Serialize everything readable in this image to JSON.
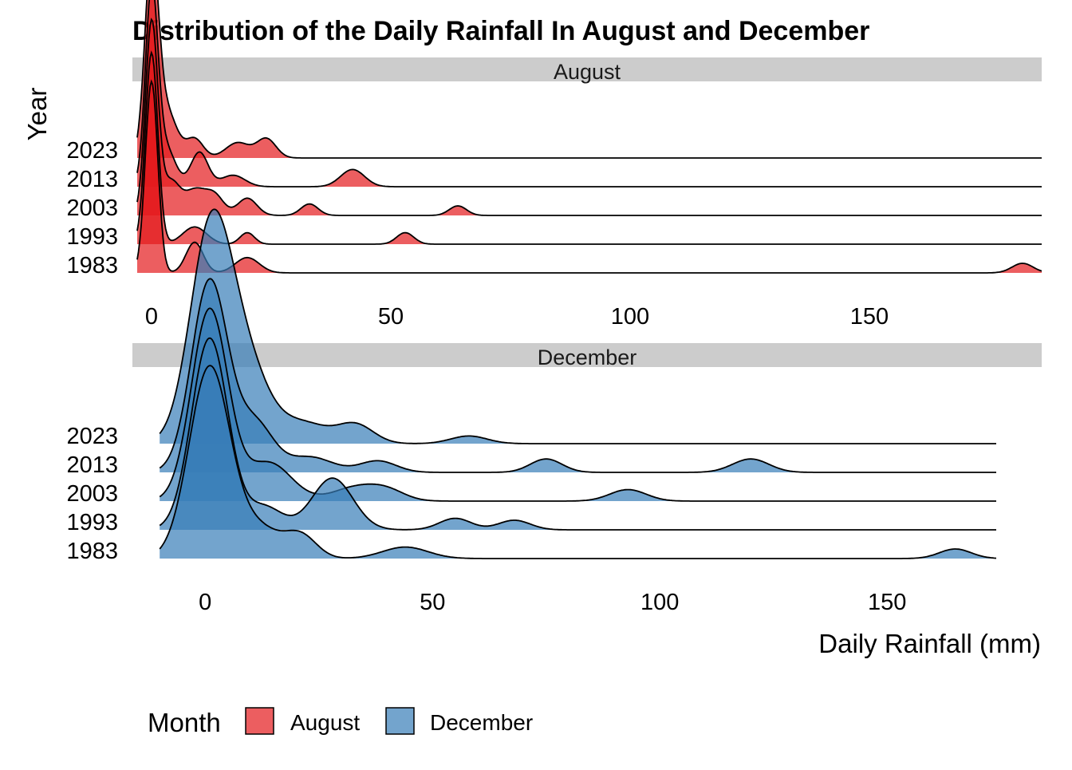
{
  "chart_data": [
    {
      "type": "ridgeline",
      "panel": "August",
      "title": "Distribution of the Daily Rainfall In August and December",
      "ylabel": "Year",
      "xlabel": "",
      "categories": [
        "1983",
        "1993",
        "2003",
        "2013",
        "2023"
      ],
      "xlim": [
        -4,
        186
      ],
      "xticks": [
        0,
        50,
        100,
        150
      ],
      "fill_color": "#E41A1C",
      "series": [
        {
          "name": "1983",
          "range": [
            -3,
            186
          ],
          "peaks": [
            [
              0,
              1.0,
              1.3
            ],
            [
              9,
              0.16,
              1.8
            ],
            [
              20,
              0.08,
              2.5
            ],
            [
              182,
              0.05,
              2.2
            ]
          ]
        },
        {
          "name": "1993",
          "range": [
            -3,
            186
          ],
          "peaks": [
            [
              0,
              1.0,
              1.3
            ],
            [
              9,
              0.09,
              2.5
            ],
            [
              20,
              0.06,
              1.5
            ],
            [
              53,
              0.06,
              1.8
            ]
          ]
        },
        {
          "name": "2003",
          "range": [
            -3,
            186
          ],
          "peaks": [
            [
              0,
              1.0,
              1.3
            ],
            [
              4,
              0.18,
              2.0
            ],
            [
              9,
              0.12,
              2.0
            ],
            [
              13,
              0.11,
              2.0
            ],
            [
              20,
              0.09,
              2.0
            ],
            [
              33,
              0.06,
              1.8
            ],
            [
              64,
              0.05,
              1.8
            ]
          ]
        },
        {
          "name": "2013",
          "range": [
            -3,
            186
          ],
          "peaks": [
            [
              0,
              1.0,
              1.3
            ],
            [
              3,
              0.2,
              2.0
            ],
            [
              10,
              0.18,
              1.8
            ],
            [
              17,
              0.06,
              2.5
            ],
            [
              42,
              0.09,
              2.5
            ]
          ]
        },
        {
          "name": "2023",
          "range": [
            -3,
            186
          ],
          "peaks": [
            [
              0,
              1.0,
              1.4
            ],
            [
              3,
              0.25,
              2.2
            ],
            [
              9,
              0.1,
              1.8
            ],
            [
              18,
              0.08,
              2.5
            ],
            [
              24,
              0.1,
              2.0
            ]
          ]
        }
      ]
    },
    {
      "type": "ridgeline",
      "panel": "December",
      "title": "",
      "ylabel": "",
      "xlabel": "Daily Rainfall (mm)",
      "categories": [
        "1983",
        "1993",
        "2003",
        "2013",
        "2023"
      ],
      "xlim": [
        -16,
        184
      ],
      "xticks": [
        0,
        50,
        100,
        150
      ],
      "fill_color": "#377EB8",
      "series": [
        {
          "name": "1983",
          "range": [
            -10,
            174
          ],
          "peaks": [
            [
              1,
              1.0,
              4.5
            ],
            [
              12,
              0.15,
              4.5
            ],
            [
              21,
              0.12,
              3.5
            ],
            [
              44,
              0.06,
              5.0
            ],
            [
              165,
              0.05,
              3.5
            ]
          ]
        },
        {
          "name": "1993",
          "range": [
            -10,
            174
          ],
          "peaks": [
            [
              1,
              1.0,
              4.0
            ],
            [
              13,
              0.12,
              4.0
            ],
            [
              28,
              0.27,
              4.5
            ],
            [
              55,
              0.06,
              3.5
            ],
            [
              68,
              0.05,
              3.5
            ]
          ]
        },
        {
          "name": "2003",
          "range": [
            -10,
            174
          ],
          "peaks": [
            [
              1,
              1.0,
              4.0
            ],
            [
              14,
              0.2,
              5.0
            ],
            [
              33,
              0.07,
              5.0
            ],
            [
              40,
              0.05,
              4.0
            ],
            [
              93,
              0.06,
              4.0
            ]
          ]
        },
        {
          "name": "2013",
          "range": [
            -10,
            174
          ],
          "peaks": [
            [
              1,
              1.0,
              4.0
            ],
            [
              11,
              0.25,
              4.0
            ],
            [
              23,
              0.08,
              5.0
            ],
            [
              38,
              0.06,
              4.0
            ],
            [
              75,
              0.07,
              3.5
            ],
            [
              120,
              0.07,
              4.0
            ]
          ]
        },
        {
          "name": "2023",
          "range": [
            -10,
            174
          ],
          "peaks": [
            [
              1,
              1.0,
              4.5
            ],
            [
              8,
              0.45,
              5.5
            ],
            [
              22,
              0.1,
              5.0
            ],
            [
              33,
              0.1,
              4.0
            ],
            [
              58,
              0.04,
              4.0
            ]
          ]
        }
      ]
    }
  ],
  "legend": {
    "title": "Month",
    "items": [
      {
        "label": "August",
        "color": "#E41A1C"
      },
      {
        "label": "December",
        "color": "#377EB8"
      }
    ],
    "position": "bottom-left"
  },
  "strip_color": "#CCCCCC"
}
